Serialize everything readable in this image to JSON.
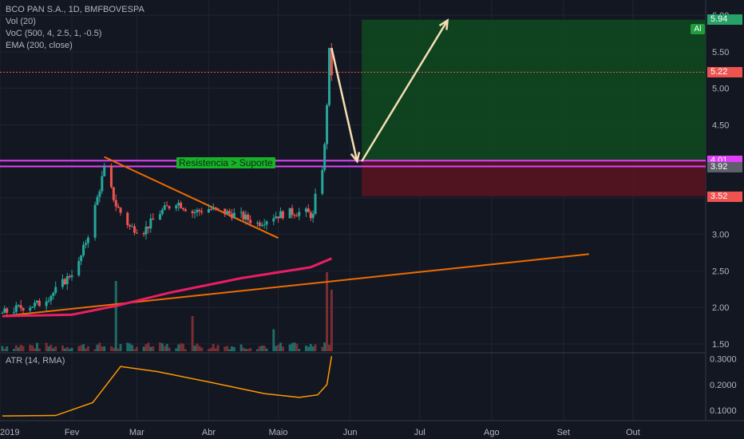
{
  "legend": {
    "symbol": "BCO PAN S.A., 1D, BMFBOVESPA",
    "vol": "Vol (20)",
    "voc": "VoC (500, 4, 2.5, 1, -0.5)",
    "ema": "EMA (200, close)",
    "atr": "ATR (14, RMA)"
  },
  "annotation": "Resistencia > Suporte",
  "alert_label": "Al",
  "price_tags": [
    {
      "label": "5.94",
      "value": 5.94,
      "color": "#26a269"
    },
    {
      "label": "5.22",
      "value": 5.22,
      "color": "#ef5350"
    },
    {
      "label": "4.01",
      "value": 4.01,
      "color": "#e040fb"
    },
    {
      "label": "3.93",
      "value": 3.93,
      "color": "#e040fb"
    },
    {
      "label": "3.92",
      "value": 3.92,
      "color": "#5d606b"
    },
    {
      "label": "3.52",
      "value": 3.52,
      "color": "#ef5350"
    }
  ],
  "colors": {
    "up": "#26a69a",
    "down": "#ef5350",
    "ema": "#e91e63",
    "trend": "#ef6c00",
    "atr": "#ff9800",
    "pivot": "#e040fb",
    "arrow": "#f5deb3"
  },
  "chart_data": {
    "type": "candlestick",
    "title": "BCO PAN S.A., 1D, BMFBOVESPA",
    "x_tick_labels": [
      "2019",
      "Fev",
      "Mar",
      "Abr",
      "Maio",
      "Jun",
      "Jul",
      "Ago",
      "Set",
      "Out"
    ],
    "y_tick_labels": [
      "1.50",
      "2.00",
      "2.50",
      "3.00",
      "3.50",
      "4.00",
      "4.50",
      "5.00",
      "5.50",
      "6.00"
    ],
    "ylim": [
      1.4,
      6.1
    ],
    "atr_tick_labels": [
      "0.1000",
      "0.2000",
      "0.3000"
    ],
    "atr_ylim": [
      0.06,
      0.32
    ],
    "price_series": [
      {
        "x": "2019-01-02",
        "y": 1.92
      },
      {
        "x": "2019-01-10",
        "y": 2.0
      },
      {
        "x": "2019-01-18",
        "y": 2.05
      },
      {
        "x": "2019-01-24",
        "y": 2.2
      },
      {
        "x": "2019-01-30",
        "y": 2.4
      },
      {
        "x": "2019-02-04",
        "y": 2.6
      },
      {
        "x": "2019-02-08",
        "y": 3.0
      },
      {
        "x": "2019-02-12",
        "y": 3.5
      },
      {
        "x": "2019-02-15",
        "y": 3.9
      },
      {
        "x": "2019-02-20",
        "y": 3.4
      },
      {
        "x": "2019-02-26",
        "y": 3.1
      },
      {
        "x": "2019-03-04",
        "y": 3.05
      },
      {
        "x": "2019-03-11",
        "y": 3.3
      },
      {
        "x": "2019-03-18",
        "y": 3.45
      },
      {
        "x": "2019-03-25",
        "y": 3.3
      },
      {
        "x": "2019-04-01",
        "y": 3.35
      },
      {
        "x": "2019-04-08",
        "y": 3.3
      },
      {
        "x": "2019-04-15",
        "y": 3.25
      },
      {
        "x": "2019-04-22",
        "y": 3.15
      },
      {
        "x": "2019-04-29",
        "y": 3.25
      },
      {
        "x": "2019-05-06",
        "y": 3.3
      },
      {
        "x": "2019-05-13",
        "y": 3.3
      },
      {
        "x": "2019-05-16",
        "y": 3.25
      },
      {
        "x": "2019-05-17",
        "y": 3.5
      },
      {
        "x": "2019-05-20",
        "y": 3.92
      },
      {
        "x": "2019-05-21",
        "y": 4.2
      },
      {
        "x": "2019-05-22",
        "y": 4.8
      },
      {
        "x": "2019-05-23",
        "y": 5.5
      },
      {
        "x": "2019-05-24",
        "y": 5.2
      }
    ],
    "ema_200": [
      {
        "x": "2019-01-02",
        "y": 1.88
      },
      {
        "x": "2019-02-01",
        "y": 1.9
      },
      {
        "x": "2019-02-20",
        "y": 2.02
      },
      {
        "x": "2019-03-15",
        "y": 2.2
      },
      {
        "x": "2019-04-15",
        "y": 2.4
      },
      {
        "x": "2019-05-15",
        "y": 2.55
      },
      {
        "x": "2019-05-24",
        "y": 2.67
      }
    ],
    "trend_lines": [
      {
        "name": "support",
        "from": {
          "x": "2019-01-02",
          "y": 1.88
        },
        "to": {
          "x": "2019-09-12",
          "y": 2.73
        }
      },
      {
        "name": "resistance",
        "from": {
          "x": "2019-02-15",
          "y": 4.06
        },
        "to": {
          "x": "2019-05-01",
          "y": 2.95
        }
      }
    ],
    "levels": [
      4.01,
      3.93,
      5.22
    ],
    "position": {
      "entry": 4.01,
      "target": 5.94,
      "stop": 3.52,
      "start": "2019-06-06",
      "end": "2019-10-30"
    },
    "projection": [
      {
        "x": "2019-05-24",
        "y": 5.55
      },
      {
        "x": "2019-06-04",
        "y": 4.0
      },
      {
        "x": "2019-06-06",
        "y": 4.0
      },
      {
        "x": "2019-07-13",
        "y": 5.93
      }
    ],
    "volume": [
      {
        "x": "2019-02-20",
        "v": 0.8
      },
      {
        "x": "2019-03-25",
        "v": 0.4
      },
      {
        "x": "2019-04-29",
        "v": 0.25
      },
      {
        "x": "2019-05-22",
        "v": 0.9
      },
      {
        "x": "2019-05-24",
        "v": 0.7
      }
    ],
    "atr_series": [
      {
        "x": "2019-01-02",
        "y": 0.078
      },
      {
        "x": "2019-01-25",
        "y": 0.08
      },
      {
        "x": "2019-02-10",
        "y": 0.13
      },
      {
        "x": "2019-02-22",
        "y": 0.27
      },
      {
        "x": "2019-03-10",
        "y": 0.25
      },
      {
        "x": "2019-04-01",
        "y": 0.21
      },
      {
        "x": "2019-04-25",
        "y": 0.165
      },
      {
        "x": "2019-05-10",
        "y": 0.15
      },
      {
        "x": "2019-05-18",
        "y": 0.16
      },
      {
        "x": "2019-05-22",
        "y": 0.2
      },
      {
        "x": "2019-05-24",
        "y": 0.31
      }
    ]
  }
}
